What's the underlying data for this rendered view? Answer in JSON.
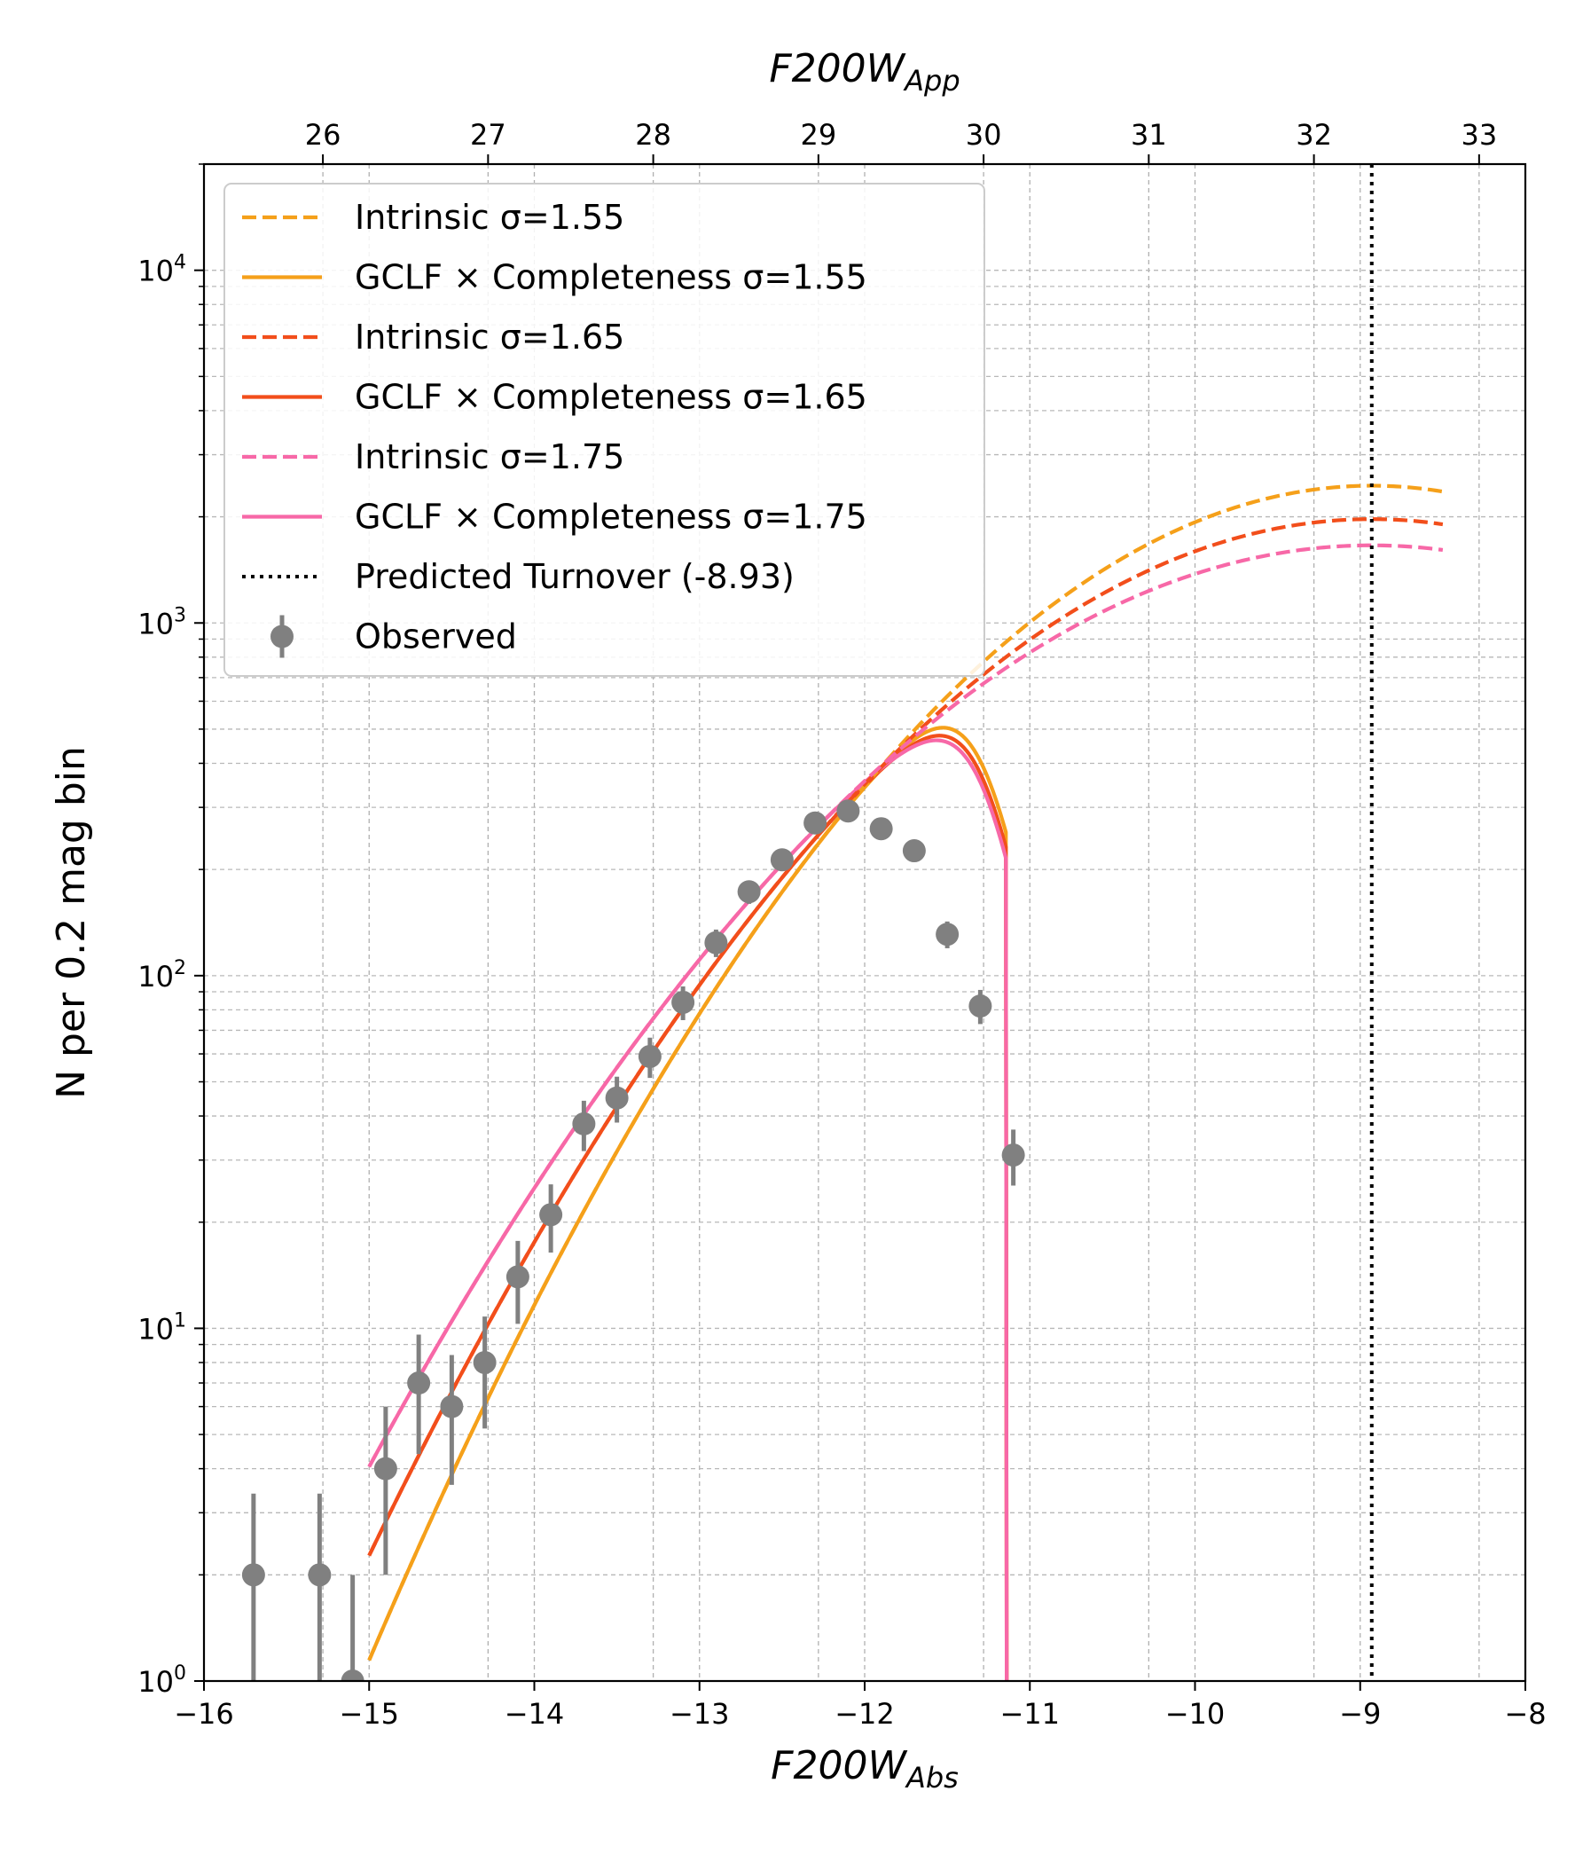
{
  "chart_data": {
    "type": "line",
    "title": "",
    "xlabel": "F200W",
    "xlabel_sub": "Abs",
    "x2label": "F200W",
    "x2label_sub": "App",
    "ylabel": "N per 0.2 mag bin",
    "x_scale": "linear",
    "y_scale": "log",
    "xlim": [
      -16,
      -8
    ],
    "ylim": [
      1,
      20000
    ],
    "x2lim": [
      25.28,
      33.28
    ],
    "grid": true,
    "legend_position": "upper-left",
    "x_ticks": [
      {
        "value": -16,
        "label": "−16"
      },
      {
        "value": -15,
        "label": "−15"
      },
      {
        "value": -14,
        "label": "−14"
      },
      {
        "value": -13,
        "label": "−13"
      },
      {
        "value": -12,
        "label": "−12"
      },
      {
        "value": -11,
        "label": "−11"
      },
      {
        "value": -10,
        "label": "−10"
      },
      {
        "value": -9,
        "label": "−9"
      },
      {
        "value": -8,
        "label": "−8"
      }
    ],
    "x2_ticks": [
      {
        "value": 26,
        "label": "26"
      },
      {
        "value": 27,
        "label": "27"
      },
      {
        "value": 28,
        "label": "28"
      },
      {
        "value": 29,
        "label": "29"
      },
      {
        "value": 30,
        "label": "30"
      },
      {
        "value": 31,
        "label": "31"
      },
      {
        "value": 32,
        "label": "32"
      },
      {
        "value": 33,
        "label": "33"
      }
    ],
    "y_ticks": [
      {
        "value": 1,
        "base": "10",
        "exp": "0"
      },
      {
        "value": 10,
        "base": "10",
        "exp": "1"
      },
      {
        "value": 100,
        "base": "10",
        "exp": "2"
      },
      {
        "value": 1000,
        "base": "10",
        "exp": "3"
      },
      {
        "value": 10000,
        "base": "10",
        "exp": "4"
      }
    ],
    "turnover": -8.93,
    "series": [
      {
        "name": "Intrinsic σ=1.55",
        "kind": "intrinsic",
        "style": "dashed",
        "color": "#f5a01a",
        "mu": -8.93,
        "sigma": 1.55,
        "amp": 2450
      },
      {
        "name": "GCLF × Completeness σ=1.55",
        "kind": "completeness",
        "style": "solid",
        "color": "#f5a01a",
        "mu": -8.93,
        "sigma": 1.55,
        "amp": 2450
      },
      {
        "name": "Intrinsic σ=1.65",
        "kind": "intrinsic",
        "style": "dashed",
        "color": "#f24e1b",
        "mu": -8.93,
        "sigma": 1.65,
        "amp": 1970
      },
      {
        "name": "GCLF × Completeness σ=1.65",
        "kind": "completeness",
        "style": "solid",
        "color": "#f24e1b",
        "mu": -8.93,
        "sigma": 1.65,
        "amp": 1970
      },
      {
        "name": "Intrinsic σ=1.75",
        "kind": "intrinsic",
        "style": "dashed",
        "color": "#f768a7",
        "mu": -8.93,
        "sigma": 1.75,
        "amp": 1660
      },
      {
        "name": "GCLF × Completeness σ=1.75",
        "kind": "completeness",
        "style": "solid",
        "color": "#f768a7",
        "mu": -8.93,
        "sigma": 1.75,
        "amp": 1660
      },
      {
        "name": "Predicted Turnover (-8.93)",
        "kind": "turnover",
        "style": "dotted",
        "color": "#000000"
      },
      {
        "name": "Observed",
        "kind": "observed",
        "style": "errorbar",
        "color": "#808080"
      }
    ],
    "model_range": {
      "x_start": -15.0,
      "x_end": -8.5,
      "completeness_end": -11.14
    },
    "completeness": {
      "limit": -11.14,
      "half": -11.28,
      "width": 0.15
    },
    "observed": [
      {
        "x": -15.7,
        "y": 2,
        "yerr_low": 1.0,
        "yerr_high": 1.4
      },
      {
        "x": -15.3,
        "y": 2,
        "yerr_low": 1.0,
        "yerr_high": 1.4
      },
      {
        "x": -15.1,
        "y": 1,
        "yerr_low": 0.5,
        "yerr_high": 1.0
      },
      {
        "x": -14.9,
        "y": 4,
        "yerr_low": 2.0,
        "yerr_high": 2.0
      },
      {
        "x": -14.7,
        "y": 7,
        "yerr_low": 2.6,
        "yerr_high": 2.6
      },
      {
        "x": -14.5,
        "y": 6,
        "yerr_low": 2.4,
        "yerr_high": 2.4
      },
      {
        "x": -14.3,
        "y": 8,
        "yerr_low": 2.8,
        "yerr_high": 2.8
      },
      {
        "x": -14.1,
        "y": 14,
        "yerr_low": 3.7,
        "yerr_high": 3.7
      },
      {
        "x": -13.9,
        "y": 21,
        "yerr_low": 4.6,
        "yerr_high": 4.6
      },
      {
        "x": -13.7,
        "y": 38,
        "yerr_low": 6.2,
        "yerr_high": 6.2
      },
      {
        "x": -13.5,
        "y": 45,
        "yerr_low": 6.7,
        "yerr_high": 6.7
      },
      {
        "x": -13.3,
        "y": 59,
        "yerr_low": 7.7,
        "yerr_high": 7.7
      },
      {
        "x": -13.1,
        "y": 84,
        "yerr_low": 9.2,
        "yerr_high": 9.2
      },
      {
        "x": -12.9,
        "y": 124,
        "yerr_low": 11.1,
        "yerr_high": 11.1
      },
      {
        "x": -12.7,
        "y": 173,
        "yerr_low": 13.2,
        "yerr_high": 13.2
      },
      {
        "x": -12.5,
        "y": 213,
        "yerr_low": 14.6,
        "yerr_high": 14.6
      },
      {
        "x": -12.3,
        "y": 271,
        "yerr_low": 16.5,
        "yerr_high": 16.5
      },
      {
        "x": -12.1,
        "y": 293,
        "yerr_low": 17.1,
        "yerr_high": 17.1
      },
      {
        "x": -11.9,
        "y": 261,
        "yerr_low": 16.2,
        "yerr_high": 16.2
      },
      {
        "x": -11.7,
        "y": 226,
        "yerr_low": 15.0,
        "yerr_high": 15.0
      },
      {
        "x": -11.5,
        "y": 131,
        "yerr_low": 11.4,
        "yerr_high": 11.4
      },
      {
        "x": -11.3,
        "y": 82,
        "yerr_low": 9.1,
        "yerr_high": 9.1
      },
      {
        "x": -11.1,
        "y": 31,
        "yerr_low": 5.6,
        "yerr_high": 5.6
      }
    ]
  }
}
